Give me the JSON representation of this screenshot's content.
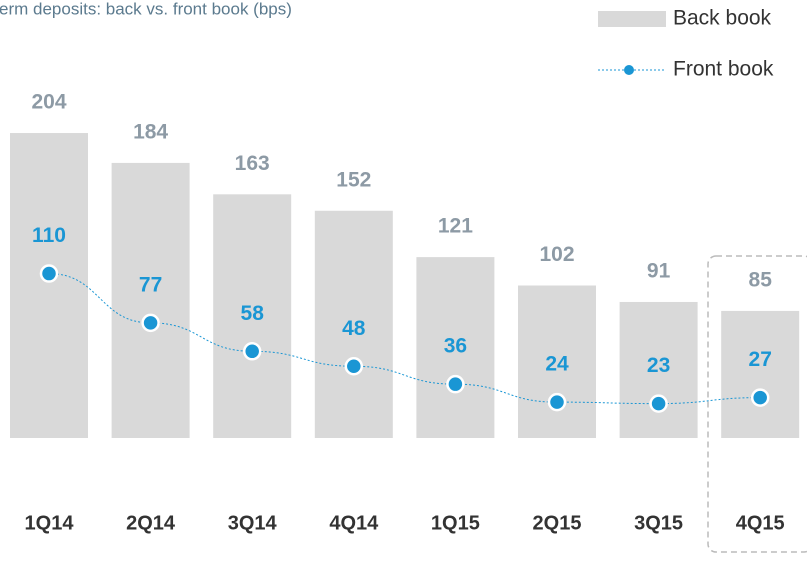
{
  "chart_data": {
    "type": "bar",
    "title": "erm deposits: back vs. front book (bps)",
    "categories": [
      "1Q14",
      "2Q14",
      "3Q14",
      "4Q14",
      "1Q15",
      "2Q15",
      "3Q15",
      "4Q15"
    ],
    "series": [
      {
        "name": "Back book",
        "color": "#d9d9d9",
        "type": "bar",
        "values": [
          204,
          184,
          163,
          152,
          121,
          102,
          91,
          85
        ]
      },
      {
        "name": "Front book",
        "color": "#1a96d4",
        "type": "line",
        "values": [
          110,
          77,
          58,
          48,
          36,
          24,
          23,
          27
        ]
      }
    ]
  }
}
